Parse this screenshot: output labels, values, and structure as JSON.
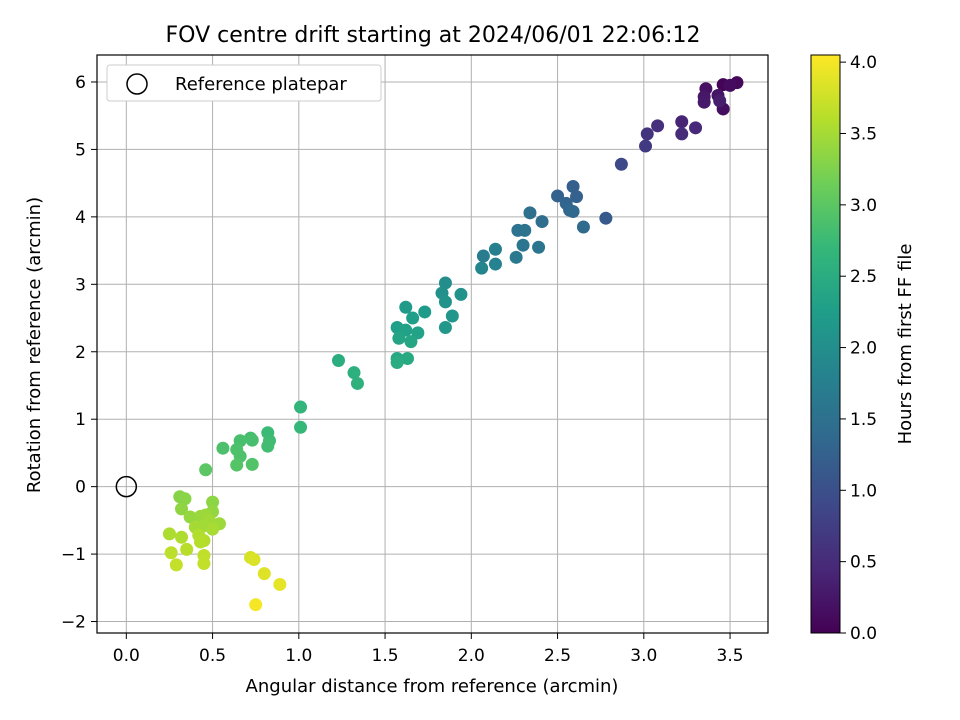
{
  "chart_data": {
    "type": "scatter",
    "title": "FOV centre drift starting at 2024/06/01 22:06:12",
    "xlabel": "Angular distance from reference (arcmin)",
    "ylabel": "Rotation from reference (arcmin)",
    "xlim": [
      -0.17,
      3.72
    ],
    "ylim": [
      -2.17,
      6.4
    ],
    "xticks": [
      0.0,
      0.5,
      1.0,
      1.5,
      2.0,
      2.5,
      3.0,
      3.5
    ],
    "xtick_labels": [
      "0.0",
      "0.5",
      "1.0",
      "1.5",
      "2.0",
      "2.5",
      "3.0",
      "3.5"
    ],
    "yticks": [
      -2,
      -1,
      0,
      1,
      2,
      3,
      4,
      5,
      6
    ],
    "ytick_labels": [
      "−2",
      "−1",
      "0",
      "1",
      "2",
      "3",
      "4",
      "5",
      "6"
    ],
    "grid": true,
    "legend": {
      "position": "top-left",
      "entries": [
        {
          "label": "Reference platepar",
          "marker": "open-circle"
        }
      ]
    },
    "reference_point": {
      "x": 0.0,
      "y": 0.0
    },
    "colorbar": {
      "label": "Hours from first FF file",
      "colormap": "viridis",
      "range": [
        0.0,
        4.05
      ],
      "ticks": [
        0.0,
        0.5,
        1.0,
        1.5,
        2.0,
        2.5,
        3.0,
        3.5,
        4.0
      ],
      "tick_labels": [
        "0.0",
        "0.5",
        "1.0",
        "1.5",
        "2.0",
        "2.5",
        "3.0",
        "3.5",
        "4.0"
      ],
      "stops": [
        "#440154",
        "#482878",
        "#3e4989",
        "#31688e",
        "#26828e",
        "#1f9e89",
        "#35b779",
        "#6ece58",
        "#b5de2b",
        "#fde725"
      ]
    },
    "series": [
      {
        "columns": [
          "x",
          "y",
          "hours"
        ],
        "points": [
          [
            3.46,
            5.96,
            0.05
          ],
          [
            3.54,
            5.99,
            0.08
          ],
          [
            3.5,
            5.95,
            0.12
          ],
          [
            3.46,
            5.6,
            0.15
          ],
          [
            3.36,
            5.9,
            0.18
          ],
          [
            3.43,
            5.8,
            0.22
          ],
          [
            3.35,
            5.78,
            0.25
          ],
          [
            3.35,
            5.7,
            0.28
          ],
          [
            3.44,
            5.72,
            0.32
          ],
          [
            3.22,
            5.41,
            0.4
          ],
          [
            3.3,
            5.32,
            0.45
          ],
          [
            3.22,
            5.23,
            0.5
          ],
          [
            3.08,
            5.35,
            0.55
          ],
          [
            3.02,
            5.23,
            0.62
          ],
          [
            3.01,
            5.05,
            0.7
          ],
          [
            2.87,
            4.78,
            0.9
          ],
          [
            2.78,
            3.98,
            1.15
          ],
          [
            2.59,
            4.45,
            1.22
          ],
          [
            2.61,
            4.3,
            1.25
          ],
          [
            2.5,
            4.31,
            1.28
          ],
          [
            2.55,
            4.2,
            1.31
          ],
          [
            2.57,
            4.1,
            1.34
          ],
          [
            2.59,
            4.08,
            1.36
          ],
          [
            2.65,
            3.85,
            1.4
          ],
          [
            2.41,
            3.93,
            1.45
          ],
          [
            2.34,
            4.06,
            1.48
          ],
          [
            2.27,
            3.8,
            1.52
          ],
          [
            2.31,
            3.8,
            1.55
          ],
          [
            2.3,
            3.58,
            1.6
          ],
          [
            2.39,
            3.55,
            1.58
          ],
          [
            2.26,
            3.4,
            1.65
          ],
          [
            2.07,
            3.42,
            1.7
          ],
          [
            2.14,
            3.52,
            1.75
          ],
          [
            2.14,
            3.3,
            1.8
          ],
          [
            2.06,
            3.24,
            1.85
          ],
          [
            1.85,
            3.02,
            2.0
          ],
          [
            1.83,
            2.87,
            2.02
          ],
          [
            1.94,
            2.85,
            2.05
          ],
          [
            1.85,
            2.74,
            2.08
          ],
          [
            1.89,
            2.53,
            2.12
          ],
          [
            1.85,
            2.36,
            2.15
          ],
          [
            1.62,
            2.66,
            2.18
          ],
          [
            1.73,
            2.59,
            2.22
          ],
          [
            1.66,
            2.5,
            2.25
          ],
          [
            1.57,
            2.36,
            2.28
          ],
          [
            1.62,
            2.32,
            2.3
          ],
          [
            1.69,
            2.28,
            2.32
          ],
          [
            1.58,
            2.2,
            2.35
          ],
          [
            1.65,
            2.15,
            2.38
          ],
          [
            1.57,
            1.9,
            2.42
          ],
          [
            1.63,
            1.9,
            2.45
          ],
          [
            1.57,
            1.84,
            2.48
          ],
          [
            1.23,
            1.87,
            2.52
          ],
          [
            1.32,
            1.69,
            2.55
          ],
          [
            1.34,
            1.53,
            2.58
          ],
          [
            1.01,
            1.18,
            2.65
          ],
          [
            1.01,
            0.88,
            2.7
          ],
          [
            0.82,
            0.8,
            2.75
          ],
          [
            0.83,
            0.68,
            2.78
          ],
          [
            0.82,
            0.6,
            2.8
          ],
          [
            0.72,
            0.72,
            2.82
          ],
          [
            0.73,
            0.69,
            2.85
          ],
          [
            0.66,
            0.68,
            2.86
          ],
          [
            0.56,
            0.57,
            2.88
          ],
          [
            0.64,
            0.55,
            2.89
          ],
          [
            0.66,
            0.45,
            2.9
          ],
          [
            0.73,
            0.33,
            2.93
          ],
          [
            0.64,
            0.32,
            2.95
          ],
          [
            0.46,
            0.25,
            3.0
          ],
          [
            0.31,
            -0.15,
            3.3
          ],
          [
            0.34,
            -0.18,
            3.32
          ],
          [
            0.5,
            -0.23,
            3.34
          ],
          [
            0.32,
            -0.33,
            3.36
          ],
          [
            0.5,
            -0.37,
            3.38
          ],
          [
            0.37,
            -0.45,
            3.4
          ],
          [
            0.43,
            -0.44,
            3.42
          ],
          [
            0.46,
            -0.42,
            3.44
          ],
          [
            0.54,
            -0.55,
            3.45
          ],
          [
            0.48,
            -0.5,
            3.47
          ],
          [
            0.45,
            -0.58,
            3.48
          ],
          [
            0.4,
            -0.6,
            3.5
          ],
          [
            0.5,
            -0.63,
            3.52
          ],
          [
            0.25,
            -0.7,
            3.55
          ],
          [
            0.32,
            -0.75,
            3.56
          ],
          [
            0.42,
            -0.72,
            3.57
          ],
          [
            0.45,
            -0.8,
            3.58
          ],
          [
            0.43,
            -0.82,
            3.6
          ],
          [
            0.35,
            -0.93,
            3.62
          ],
          [
            0.26,
            -0.98,
            3.64
          ],
          [
            0.45,
            -1.02,
            3.66
          ],
          [
            0.45,
            -1.14,
            3.68
          ],
          [
            0.29,
            -1.16,
            3.7
          ],
          [
            0.72,
            -1.05,
            3.8
          ],
          [
            0.74,
            -1.08,
            3.83
          ],
          [
            0.8,
            -1.29,
            3.86
          ],
          [
            0.89,
            -1.45,
            3.9
          ],
          [
            0.75,
            -1.75,
            4.0
          ]
        ]
      }
    ]
  }
}
